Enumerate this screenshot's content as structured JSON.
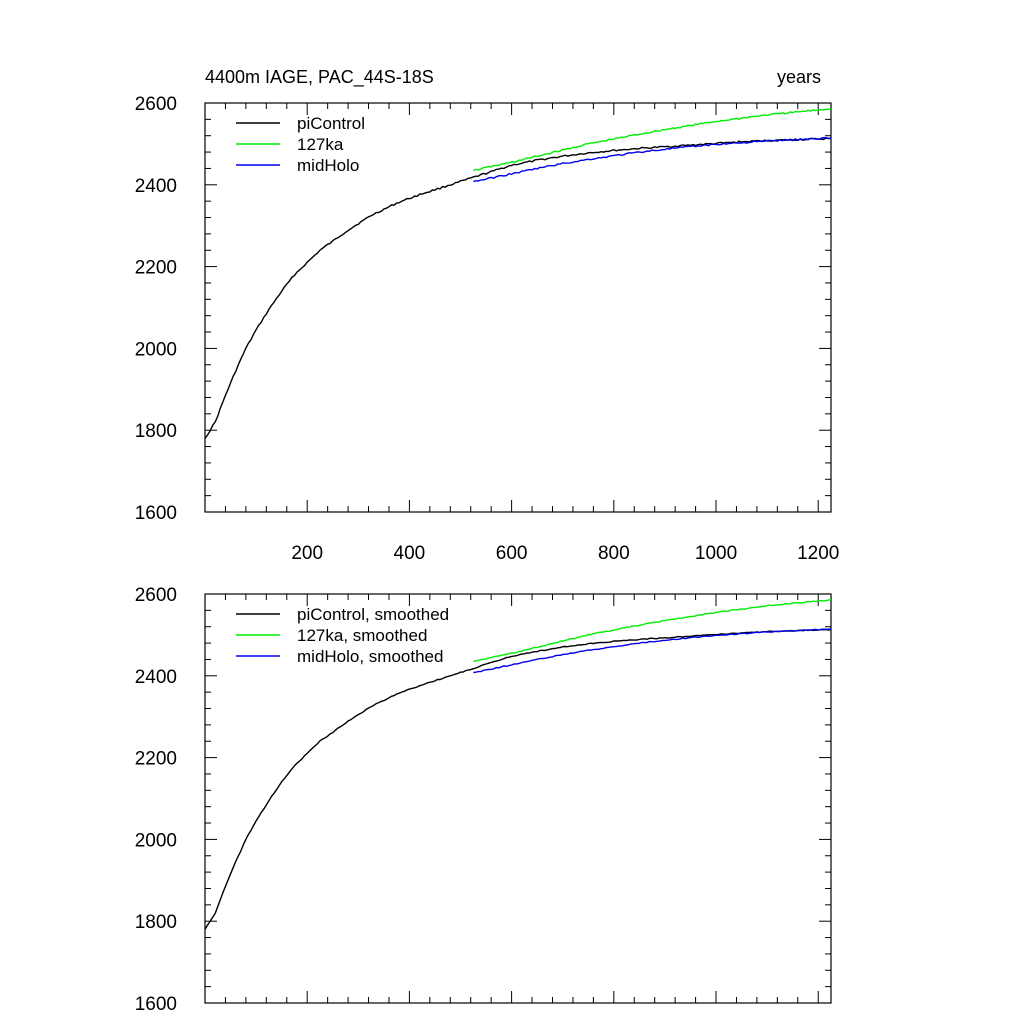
{
  "chart_data": [
    {
      "type": "line",
      "title": "4400m IAGE, PAC_44S-18S",
      "title_right": "years",
      "xlabel": "",
      "ylabel": "",
      "xlim": [
        0,
        1225
      ],
      "ylim": [
        1600,
        2600
      ],
      "x_ticks": [
        200,
        400,
        600,
        800,
        1000,
        1200
      ],
      "y_ticks": [
        1600,
        1800,
        2000,
        2200,
        2400,
        2600
      ],
      "legend_position": "top-left",
      "series": [
        {
          "name": "piControl",
          "color": "#000000",
          "x": [
            0,
            20,
            40,
            60,
            80,
            100,
            125,
            150,
            175,
            200,
            225,
            250,
            275,
            300,
            325,
            350,
            375,
            400,
            425,
            450,
            475,
            500,
            525,
            550,
            575,
            600,
            650,
            700,
            750,
            800,
            850,
            900,
            950,
            1000,
            1050,
            1100,
            1150,
            1200,
            1225
          ],
          "y": [
            1780,
            1820,
            1885,
            1945,
            2000,
            2045,
            2095,
            2140,
            2180,
            2210,
            2240,
            2262,
            2285,
            2305,
            2325,
            2340,
            2355,
            2367,
            2378,
            2388,
            2398,
            2408,
            2418,
            2428,
            2438,
            2448,
            2460,
            2470,
            2478,
            2484,
            2489,
            2493,
            2497,
            2501,
            2505,
            2508,
            2510,
            2512,
            2513
          ]
        },
        {
          "name": "127ka",
          "color": "#00ee00",
          "x": [
            525,
            550,
            600,
            650,
            700,
            750,
            800,
            850,
            900,
            950,
            1000,
            1050,
            1100,
            1150,
            1200,
            1225
          ],
          "y": [
            2435,
            2442,
            2455,
            2470,
            2485,
            2500,
            2512,
            2524,
            2535,
            2545,
            2555,
            2563,
            2571,
            2577,
            2583,
            2586
          ]
        },
        {
          "name": "midHolo",
          "color": "#0000ee",
          "x": [
            525,
            550,
            600,
            650,
            700,
            750,
            800,
            850,
            900,
            950,
            1000,
            1050,
            1100,
            1150,
            1200,
            1225
          ],
          "y": [
            2408,
            2414,
            2427,
            2440,
            2452,
            2462,
            2471,
            2480,
            2487,
            2493,
            2499,
            2503,
            2507,
            2510,
            2513,
            2515
          ]
        }
      ]
    },
    {
      "type": "line",
      "title": "",
      "xlabel": "",
      "ylabel": "",
      "xlim": [
        0,
        1225
      ],
      "ylim": [
        1600,
        2600
      ],
      "y_ticks": [
        1600,
        1800,
        2000,
        2200,
        2400,
        2600
      ],
      "legend_position": "top-left",
      "series": [
        {
          "name": "piControl, smoothed",
          "color": "#000000",
          "x": [
            0,
            20,
            40,
            60,
            80,
            100,
            125,
            150,
            175,
            200,
            225,
            250,
            275,
            300,
            325,
            350,
            375,
            400,
            425,
            450,
            475,
            500,
            525,
            550,
            575,
            600,
            650,
            700,
            750,
            800,
            850,
            900,
            950,
            1000,
            1050,
            1100,
            1150,
            1200,
            1225
          ],
          "y": [
            1780,
            1820,
            1885,
            1945,
            2000,
            2045,
            2095,
            2140,
            2180,
            2210,
            2240,
            2262,
            2285,
            2305,
            2325,
            2340,
            2355,
            2367,
            2378,
            2388,
            2398,
            2408,
            2418,
            2428,
            2438,
            2448,
            2460,
            2470,
            2478,
            2484,
            2489,
            2493,
            2497,
            2501,
            2505,
            2508,
            2510,
            2512,
            2513
          ]
        },
        {
          "name": "127ka, smoothed",
          "color": "#00ee00",
          "x": [
            525,
            550,
            600,
            650,
            700,
            750,
            800,
            850,
            900,
            950,
            1000,
            1050,
            1100,
            1150,
            1200,
            1225
          ],
          "y": [
            2435,
            2442,
            2455,
            2470,
            2485,
            2500,
            2512,
            2524,
            2535,
            2545,
            2555,
            2563,
            2571,
            2577,
            2583,
            2586
          ]
        },
        {
          "name": "midHolo, smoothed",
          "color": "#0000ee",
          "x": [
            525,
            550,
            600,
            650,
            700,
            750,
            800,
            850,
            900,
            950,
            1000,
            1050,
            1100,
            1150,
            1200,
            1225
          ],
          "y": [
            2408,
            2414,
            2427,
            2440,
            2452,
            2462,
            2471,
            2480,
            2487,
            2493,
            2499,
            2503,
            2507,
            2510,
            2513,
            2515
          ]
        }
      ]
    }
  ]
}
